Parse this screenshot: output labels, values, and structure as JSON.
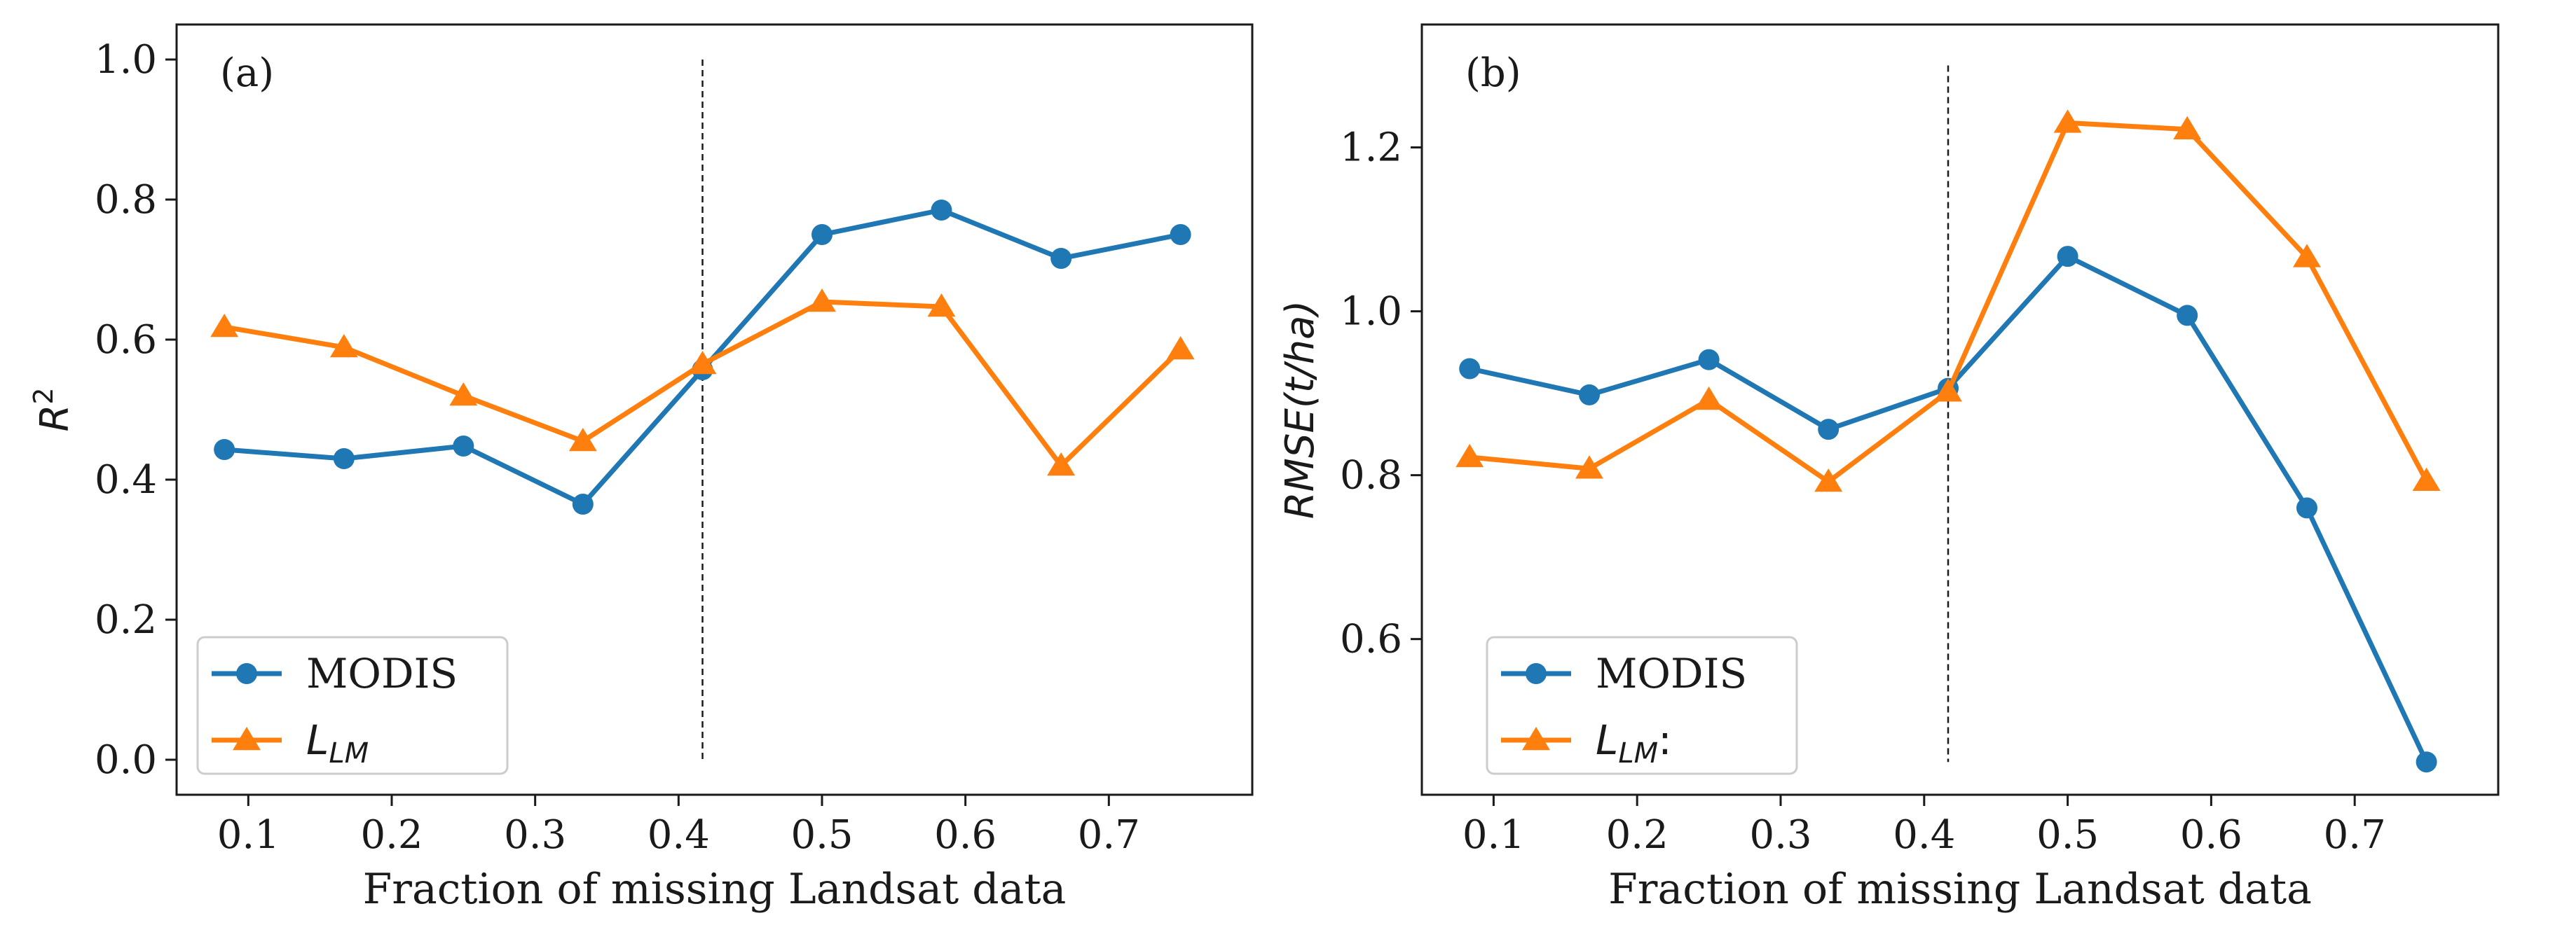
{
  "chart_data": [
    {
      "panel": "(a)",
      "type": "line",
      "xlabel": "Fraction of missing Landsat data",
      "ylabel": "R",
      "ylabel_sup": "2",
      "xlim": [
        0.05,
        0.8
      ],
      "ylim": [
        -0.05,
        1.05
      ],
      "xticks": [
        0.1,
        0.2,
        0.3,
        0.4,
        0.5,
        0.6,
        0.7
      ],
      "xtick_labels": [
        "0.1",
        "0.2",
        "0.3",
        "0.4",
        "0.5",
        "0.6",
        "0.7"
      ],
      "yticks": [
        0.0,
        0.2,
        0.4,
        0.6,
        0.8,
        1.0
      ],
      "ytick_labels": [
        "0.0",
        "0.2",
        "0.4",
        "0.6",
        "0.8",
        "1.0"
      ],
      "vline": {
        "x": 0.4167,
        "y_from": 0.0,
        "y_to": 1.0
      },
      "x": [
        0.0833,
        0.1667,
        0.25,
        0.3333,
        0.4167,
        0.5,
        0.5833,
        0.6667,
        0.75
      ],
      "legend_position": "lower left",
      "series": [
        {
          "name": "MODIS",
          "name_main": "MODIS",
          "name_sub": "",
          "name_suffix": "",
          "color": "#1f77b4",
          "marker": "circle",
          "values": [
            0.443,
            0.43,
            0.448,
            0.365,
            0.557,
            0.75,
            0.785,
            0.716,
            0.75
          ]
        },
        {
          "name": "L_LM",
          "name_main": "L",
          "name_sub": "LM",
          "name_suffix": "",
          "color": "#ff7f0e",
          "marker": "triangle",
          "values": [
            0.618,
            0.589,
            0.52,
            0.455,
            0.565,
            0.654,
            0.647,
            0.42,
            0.586
          ]
        }
      ]
    },
    {
      "panel": "(b)",
      "type": "line",
      "xlabel": "Fraction of missing Landsat data",
      "ylabel": "RMSE(t/ha)",
      "ylabel_sup": "",
      "xlim": [
        0.05,
        0.8
      ],
      "ylim": [
        0.41,
        1.35
      ],
      "xticks": [
        0.1,
        0.2,
        0.3,
        0.4,
        0.5,
        0.6,
        0.7
      ],
      "xtick_labels": [
        "0.1",
        "0.2",
        "0.3",
        "0.4",
        "0.5",
        "0.6",
        "0.7"
      ],
      "yticks": [
        0.6,
        0.8,
        1.0,
        1.2
      ],
      "ytick_labels": [
        "0.6",
        "0.8",
        "1.0",
        "1.2"
      ],
      "vline": {
        "x": 0.4167,
        "y_from": 0.45,
        "y_to": 1.3
      },
      "x": [
        0.0833,
        0.1667,
        0.25,
        0.3333,
        0.4167,
        0.5,
        0.5833,
        0.6667,
        0.75
      ],
      "legend_position": "lower left",
      "series": [
        {
          "name": "MODIS",
          "name_main": "MODIS",
          "name_sub": "",
          "name_suffix": "",
          "color": "#1f77b4",
          "marker": "circle",
          "values": [
            0.93,
            0.898,
            0.941,
            0.856,
            0.906,
            1.067,
            0.995,
            0.76,
            0.45
          ]
        },
        {
          "name": "L_LM:",
          "name_main": "L",
          "name_sub": "LM",
          "name_suffix": ":",
          "color": "#ff7f0e",
          "marker": "triangle",
          "values": [
            0.822,
            0.808,
            0.892,
            0.792,
            0.902,
            1.23,
            1.222,
            1.066,
            0.793
          ]
        }
      ]
    }
  ]
}
